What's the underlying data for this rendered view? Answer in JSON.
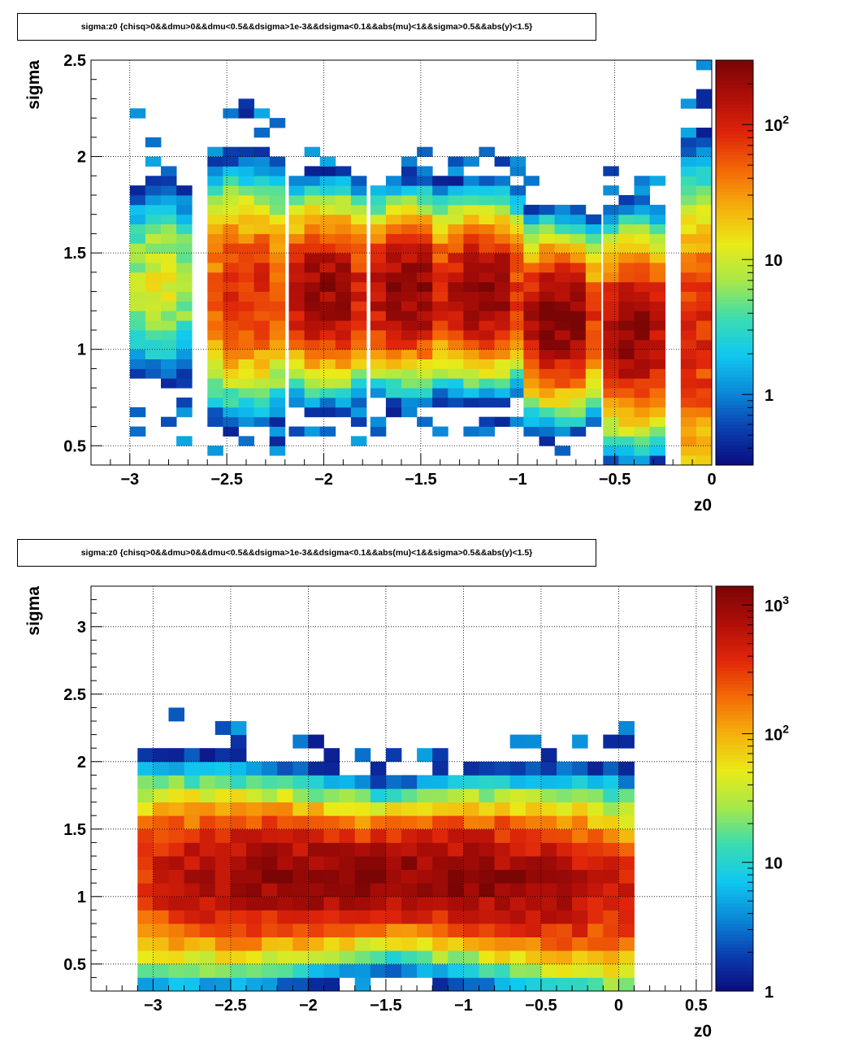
{
  "chart_data": [
    {
      "type": "heatmap",
      "title": "sigma:z0 {chisq>0&&dmu>0&&dmu<0.5&&dsigma>1e-3&&dsigma<0.1&&abs(mu)<1&&sigma>0.5&&abs(y)<1.5}",
      "xlabel": "z0",
      "ylabel": "sigma",
      "xlim": [
        -3.2,
        0.0
      ],
      "ylim": [
        0.4,
        2.5
      ],
      "x_ticks": [
        "−3",
        "−2.5",
        "−2",
        "−1.5",
        "−1",
        "−0.5",
        "0"
      ],
      "x_tick_values": [
        -3,
        -2.5,
        -2,
        -1.5,
        -1,
        -0.5,
        0
      ],
      "y_ticks": [
        "0.5",
        "1",
        "1.5",
        "2",
        "2.5"
      ],
      "y_tick_values": [
        0.5,
        1,
        1.5,
        2,
        2.5
      ],
      "color_scale": "log",
      "z_range": [
        0.3,
        300
      ],
      "colorbar_ticks": [
        {
          "base": "1",
          "exp": ""
        },
        {
          "base": "10",
          "exp": ""
        },
        {
          "base": "10",
          "exp": "2"
        }
      ],
      "colorbar_tick_values": [
        1,
        10,
        100
      ],
      "grid": true,
      "palette": [
        "#0b0b7f",
        "#0a3fb0",
        "#0a8ad8",
        "#10c8f0",
        "#3cdcb0",
        "#a6e84a",
        "#eaea18",
        "#f5b00c",
        "#f46a06",
        "#e0260a",
        "#b00e08",
        "#7a0505"
      ],
      "x_bin_width": 0.08,
      "y_bin_width": 0.05,
      "bands": [
        {
          "x_from": -3.0,
          "x_to": -2.68,
          "y_center": 1.35,
          "y_spread": 0.2,
          "peak": 12
        },
        {
          "x_from": -2.6,
          "x_to": -2.2,
          "y_center": 1.3,
          "y_spread": 0.22,
          "peak": 90
        },
        {
          "x_from": -2.18,
          "x_to": -1.8,
          "y_center": 1.3,
          "y_spread": 0.18,
          "peak": 220
        },
        {
          "x_from": -1.76,
          "x_to": -1.38,
          "y_center": 1.3,
          "y_spread": 0.17,
          "peak": 250
        },
        {
          "x_from": -1.36,
          "x_to": -1.0,
          "y_center": 1.3,
          "y_spread": 0.17,
          "peak": 240
        },
        {
          "x_from": -0.97,
          "x_to": -0.62,
          "y_center": 1.15,
          "y_spread": 0.17,
          "peak": 280
        },
        {
          "x_from": -0.56,
          "x_to": -0.24,
          "y_center": 1.08,
          "y_spread": 0.2,
          "peak": 230
        },
        {
          "x_from": -0.16,
          "x_to": 0.0,
          "y_center": 1.05,
          "y_spread": 0.32,
          "peak": 90
        }
      ]
    },
    {
      "type": "heatmap",
      "title": "sigma:z0 {chisq>0&&dmu>0&&dmu<0.5&&dsigma>1e-3&&dsigma<0.1&&abs(mu)<1&&sigma>0.5&&abs(y)<1.5}",
      "xlabel": "z0",
      "ylabel": "sigma",
      "xlim": [
        -3.4,
        0.6
      ],
      "ylim": [
        0.3,
        3.3
      ],
      "x_ticks": [
        "−3",
        "−2.5",
        "−2",
        "−1.5",
        "−1",
        "−0.5",
        "0",
        "0.5"
      ],
      "x_tick_values": [
        -3,
        -2.5,
        -2,
        -1.5,
        -1,
        -0.5,
        0,
        0.5
      ],
      "y_ticks": [
        "0.5",
        "1",
        "1.5",
        "2",
        "2.5",
        "3"
      ],
      "y_tick_values": [
        0.5,
        1,
        1.5,
        2,
        2.5,
        3
      ],
      "color_scale": "log",
      "z_range": [
        1,
        1400
      ],
      "colorbar_ticks": [
        {
          "base": "1",
          "exp": ""
        },
        {
          "base": "10",
          "exp": ""
        },
        {
          "base": "10",
          "exp": "2"
        },
        {
          "base": "10",
          "exp": "3"
        }
      ],
      "colorbar_tick_values": [
        1,
        10,
        100,
        1000
      ],
      "grid": true,
      "palette": [
        "#0b0b7f",
        "#0a3fb0",
        "#0a8ad8",
        "#10c8f0",
        "#3cdcb0",
        "#a6e84a",
        "#eaea18",
        "#f5b00c",
        "#f46a06",
        "#e0260a",
        "#b00e08",
        "#7a0505"
      ],
      "x_bin_width": 0.1,
      "y_bin_width": 0.1,
      "bands": [
        {
          "x_from": -3.1,
          "x_to": 0.1,
          "y_center": 1.15,
          "y_spread": 0.2,
          "peak": 1100
        }
      ]
    }
  ]
}
